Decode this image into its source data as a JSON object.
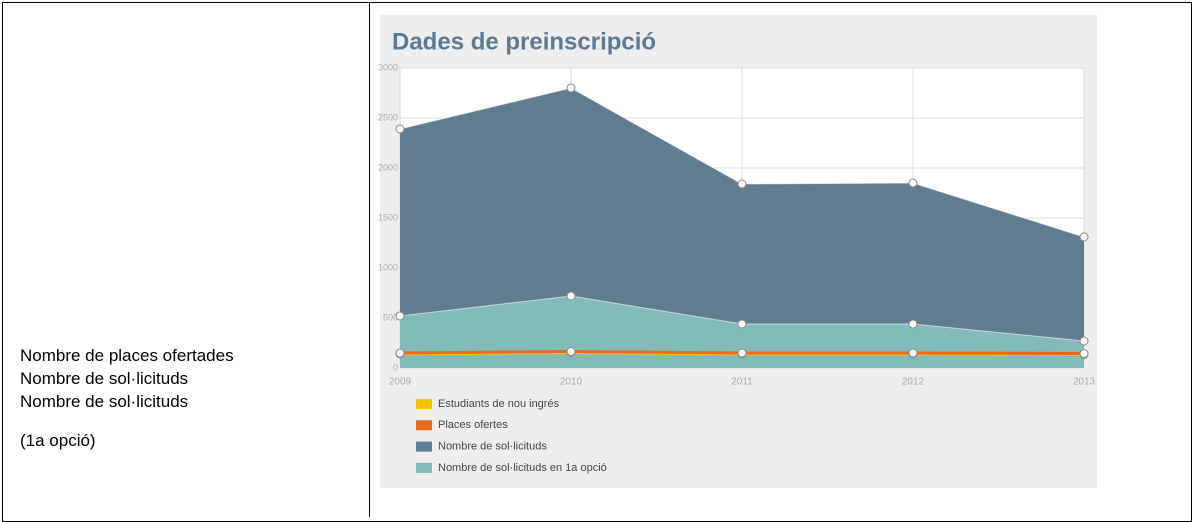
{
  "table": {
    "lines": [
      "Nombre de places ofertades",
      "Nombre de sol·licituds",
      "Nombre de sol·licituds",
      "(1a opció)"
    ]
  },
  "chart_data": {
    "type": "area",
    "title": "Dades de preinscripció",
    "x": [
      2009,
      2010,
      2011,
      2012,
      2013
    ],
    "xlim": [
      2009,
      2013
    ],
    "xticks": [
      2009,
      2010,
      2011,
      2012,
      2013
    ],
    "ylim": [
      0,
      3000
    ],
    "yticks": [
      0,
      500,
      1000,
      1500,
      2000,
      2500,
      3000
    ],
    "grid": true,
    "legend": "bottom-left",
    "series": [
      {
        "name": "Estudiants de nou ingrés",
        "color": "#f5c400",
        "area": false,
        "values": [
          140,
          155,
          140,
          140,
          135
        ]
      },
      {
        "name": "Places ofertes",
        "color": "#e8681e",
        "area": false,
        "values": [
          150,
          165,
          150,
          150,
          145
        ]
      },
      {
        "name": "Nombre de sol·licituds",
        "color": "#5f7d91",
        "area": true,
        "values": [
          2390,
          2800,
          1840,
          1850,
          1310
        ]
      },
      {
        "name": "Nombre de sol·licituds en 1a opció",
        "color": "#82bbb9",
        "area": true,
        "values": [
          520,
          720,
          440,
          440,
          270
        ]
      }
    ]
  }
}
